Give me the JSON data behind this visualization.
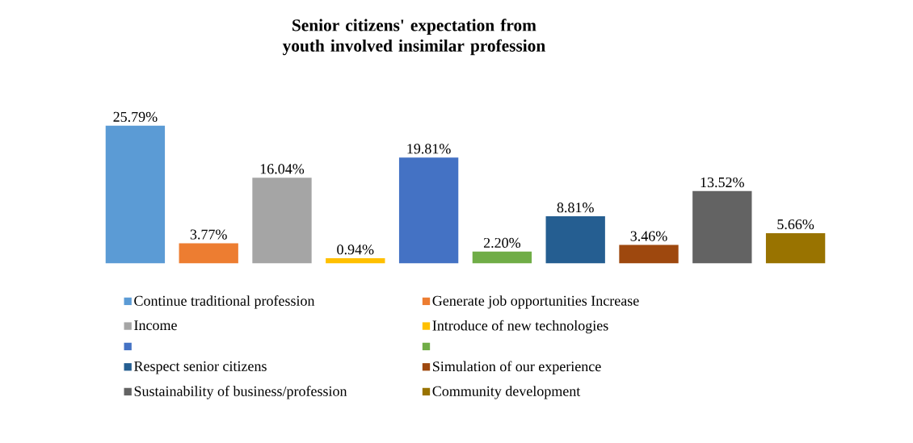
{
  "chart_data": {
    "type": "bar",
    "title": "Senior citizens' expectation from youth involved insimilar profession",
    "categories": [
      null,
      null,
      null,
      null,
      null,
      null,
      null,
      null,
      null,
      null
    ],
    "legend": "bottom",
    "stacked": true,
    "series": [
      {
        "name": "Continue traditional profession",
        "color": "#5b9bd5",
        "values": [
          25.79,
          null,
          null,
          null,
          null,
          null,
          null,
          null,
          null,
          null
        ],
        "value_labels": [
          "25.79%",
          null,
          null,
          null,
          null,
          null,
          null,
          null,
          null,
          null
        ]
      },
      {
        "name": "Generate job opportunities Increase",
        "color": "#ed7d31",
        "values": [
          null,
          3.77,
          null,
          null,
          null,
          null,
          null,
          null,
          null,
          null
        ],
        "value_labels": [
          null,
          "3.77%",
          null,
          null,
          null,
          null,
          null,
          null,
          null,
          null
        ]
      },
      {
        "name": "Income",
        "color": "#a5a5a5",
        "values": [
          null,
          null,
          16.04,
          null,
          null,
          null,
          null,
          null,
          null,
          null
        ],
        "value_labels": [
          null,
          null,
          "16.04%",
          null,
          null,
          null,
          null,
          null,
          null,
          null
        ]
      },
      {
        "name": "Introduce of new technologies",
        "color": "#ffc000",
        "values": [
          null,
          null,
          null,
          0.94,
          null,
          null,
          null,
          null,
          null,
          null
        ],
        "value_labels": [
          null,
          null,
          null,
          "0.94%",
          null,
          null,
          null,
          null,
          null,
          null
        ]
      },
      {
        "color": "#4472c4",
        "values": [
          null,
          null,
          null,
          null,
          19.81,
          null,
          null,
          null,
          null,
          null
        ],
        "value_labels": [
          null,
          null,
          null,
          null,
          "19.81%",
          null,
          null,
          null,
          null,
          null
        ]
      },
      {
        "color": "#70ad47",
        "values": [
          null,
          null,
          null,
          null,
          null,
          2.2,
          null,
          null,
          null,
          null
        ],
        "value_labels": [
          null,
          null,
          null,
          null,
          null,
          "2.20%",
          null,
          null,
          null,
          null
        ]
      },
      {
        "name": "Respect senior citizens",
        "color": "#255e91",
        "values": [
          null,
          null,
          null,
          null,
          null,
          null,
          8.81,
          null,
          null,
          null
        ],
        "value_labels": [
          null,
          null,
          null,
          null,
          null,
          null,
          "8.81%",
          null,
          null,
          null
        ]
      },
      {
        "name": "Simulation of our experience",
        "color": "#9e480e",
        "values": [
          null,
          null,
          null,
          null,
          null,
          null,
          null,
          3.46,
          null,
          null
        ],
        "value_labels": [
          null,
          null,
          null,
          null,
          null,
          null,
          null,
          "3.46%",
          null,
          null
        ]
      },
      {
        "name": "Sustainability of business/profession",
        "color": "#636363",
        "values": [
          null,
          null,
          null,
          null,
          null,
          null,
          null,
          null,
          13.52,
          null
        ],
        "value_labels": [
          null,
          null,
          null,
          null,
          null,
          null,
          null,
          null,
          "13.52%",
          null
        ]
      },
      {
        "name": "Community development",
        "color": "#997300",
        "values": [
          null,
          null,
          null,
          null,
          null,
          null,
          null,
          null,
          null,
          5.66
        ],
        "value_labels": [
          null,
          null,
          null,
          null,
          null,
          null,
          null,
          null,
          null,
          "5.66%"
        ]
      }
    ]
  }
}
